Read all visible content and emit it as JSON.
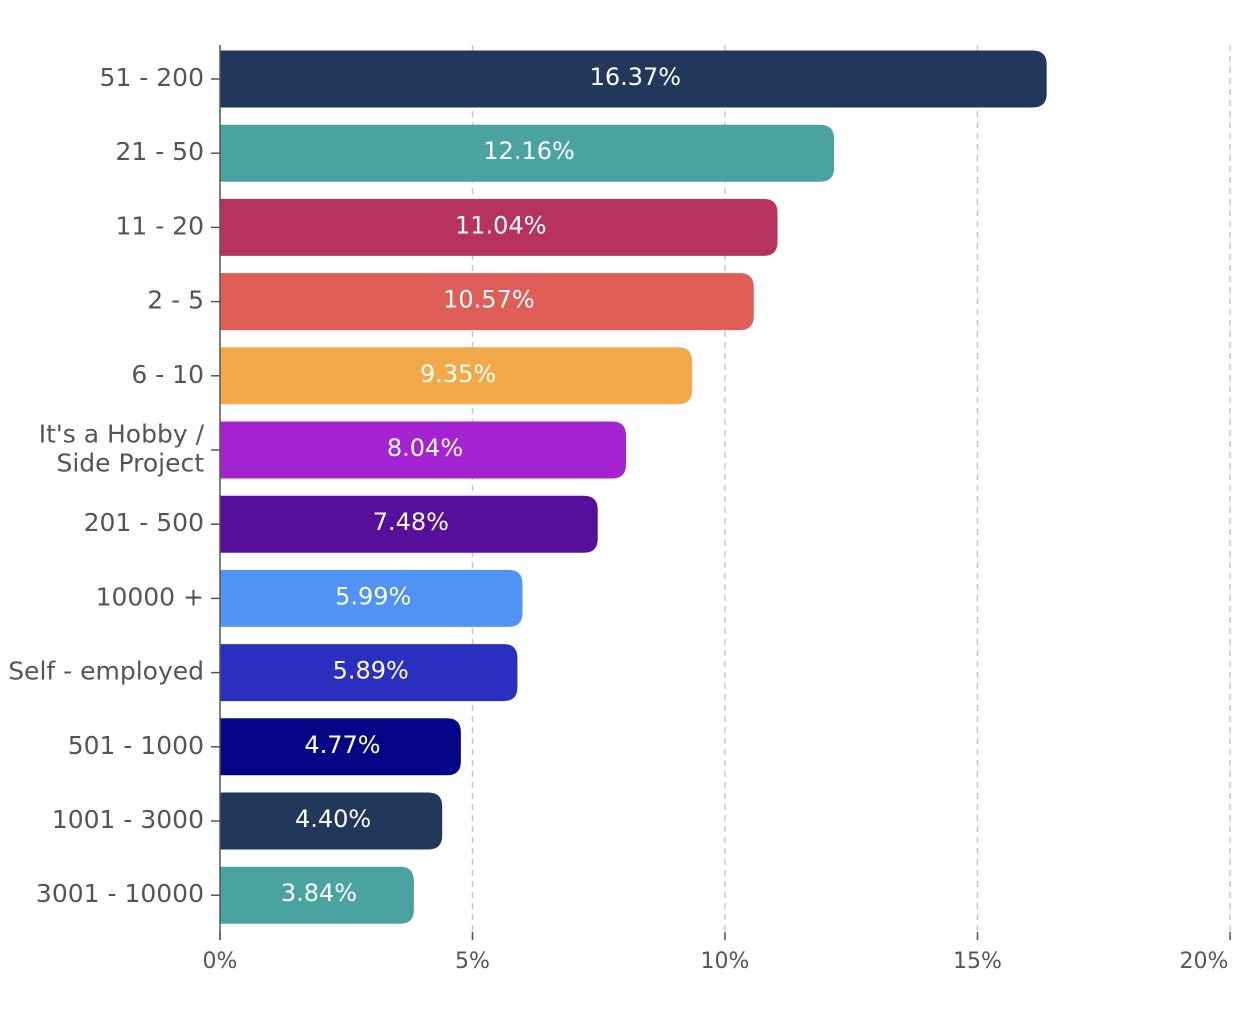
{
  "chart_data": {
    "type": "bar",
    "orientation": "horizontal",
    "title": "",
    "xlabel": "",
    "ylabel": "",
    "categories": [
      [
        "51 - 200"
      ],
      [
        "21 - 50"
      ],
      [
        "11 - 20"
      ],
      [
        "2 - 5"
      ],
      [
        "6 - 10"
      ],
      [
        "It's a Hobby  /",
        "Side Project"
      ],
      [
        "201 - 500"
      ],
      [
        "10000 +"
      ],
      [
        "Self - employed"
      ],
      [
        "501 - 1000"
      ],
      [
        "1001 - 3000"
      ],
      [
        "3001 - 10000"
      ]
    ],
    "values": [
      16.37,
      12.16,
      11.04,
      10.57,
      9.35,
      8.04,
      7.48,
      5.99,
      5.89,
      4.77,
      4.4,
      3.84
    ],
    "data_labels": [
      "16.37%",
      "12.16%",
      "11.04%",
      "10.57%",
      "9.35%",
      "8.04%",
      "7.48%",
      "5.99%",
      "5.89%",
      "4.77%",
      "4.40%",
      "3.84%"
    ],
    "colors": [
      "#22385a",
      "#4aa3a0",
      "#b83260",
      "#df5e58",
      "#f2aa48",
      "#a524d2",
      "#560f9a",
      "#5193f5",
      "#2b2fc0",
      "#040587",
      "#22385a",
      "#4aa3a0"
    ],
    "xlim": [
      0,
      20
    ],
    "xticks": [
      0,
      5,
      10,
      15,
      20
    ],
    "xtick_labels": [
      "0%",
      "5%",
      "10%",
      "15%",
      "20%"
    ],
    "grid": "vertical-dashed",
    "legend": "none"
  }
}
